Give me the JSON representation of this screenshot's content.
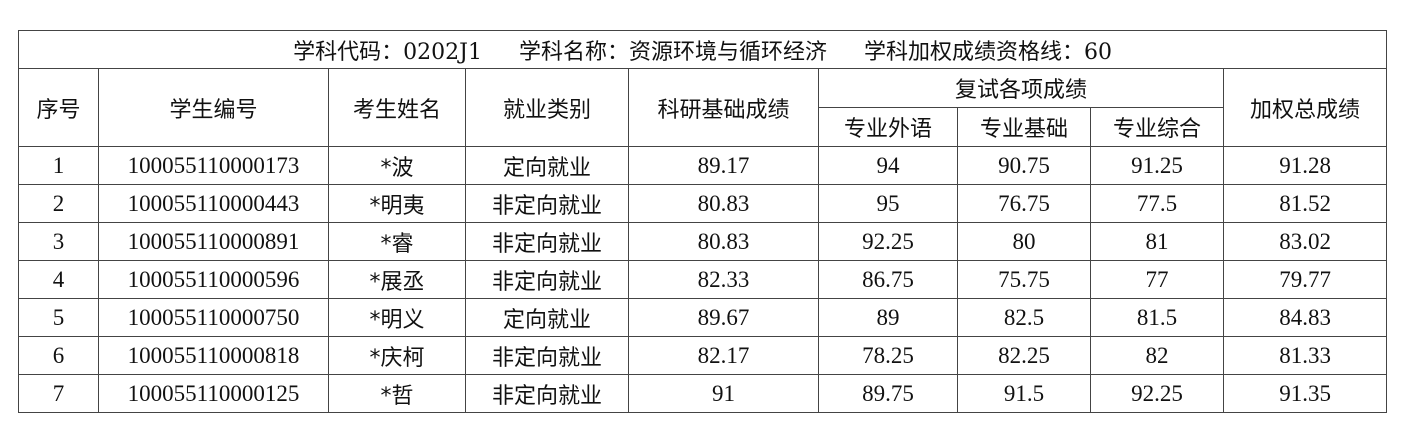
{
  "header": {
    "code_label": "学科代码：0202J1",
    "name_label": "学科名称：资源环境与循环经济",
    "line_label": "学科加权成绩资格线：60"
  },
  "columns": {
    "seq": "序号",
    "student_id": "学生编号",
    "name": "考生姓名",
    "employment": "就业类别",
    "research": "科研基础成绩",
    "retest_group": "复试各项成绩",
    "foreign": "专业外语",
    "basic": "专业基础",
    "comprehensive": "专业综合",
    "weighted": "加权总成绩"
  },
  "rows": [
    {
      "seq": "1",
      "id": "100055110000173",
      "name": "*波",
      "type": "定向就业",
      "research": "89.17",
      "foreign": "94",
      "basic": "90.75",
      "comp": "91.25",
      "total": "91.28"
    },
    {
      "seq": "2",
      "id": "100055110000443",
      "name": "*明夷",
      "type": "非定向就业",
      "research": "80.83",
      "foreign": "95",
      "basic": "76.75",
      "comp": "77.5",
      "total": "81.52"
    },
    {
      "seq": "3",
      "id": "100055110000891",
      "name": "*睿",
      "type": "非定向就业",
      "research": "80.83",
      "foreign": "92.25",
      "basic": "80",
      "comp": "81",
      "total": "83.02"
    },
    {
      "seq": "4",
      "id": "100055110000596",
      "name": "*展丞",
      "type": "非定向就业",
      "research": "82.33",
      "foreign": "86.75",
      "basic": "75.75",
      "comp": "77",
      "total": "79.77"
    },
    {
      "seq": "5",
      "id": "100055110000750",
      "name": "*明义",
      "type": "定向就业",
      "research": "89.67",
      "foreign": "89",
      "basic": "82.5",
      "comp": "81.5",
      "total": "84.83"
    },
    {
      "seq": "6",
      "id": "100055110000818",
      "name": "*庆柯",
      "type": "非定向就业",
      "research": "82.17",
      "foreign": "78.25",
      "basic": "82.25",
      "comp": "82",
      "total": "81.33"
    },
    {
      "seq": "7",
      "id": "100055110000125",
      "name": "*哲",
      "type": "非定向就业",
      "research": "91",
      "foreign": "89.75",
      "basic": "91.5",
      "comp": "92.25",
      "total": "91.35"
    }
  ]
}
